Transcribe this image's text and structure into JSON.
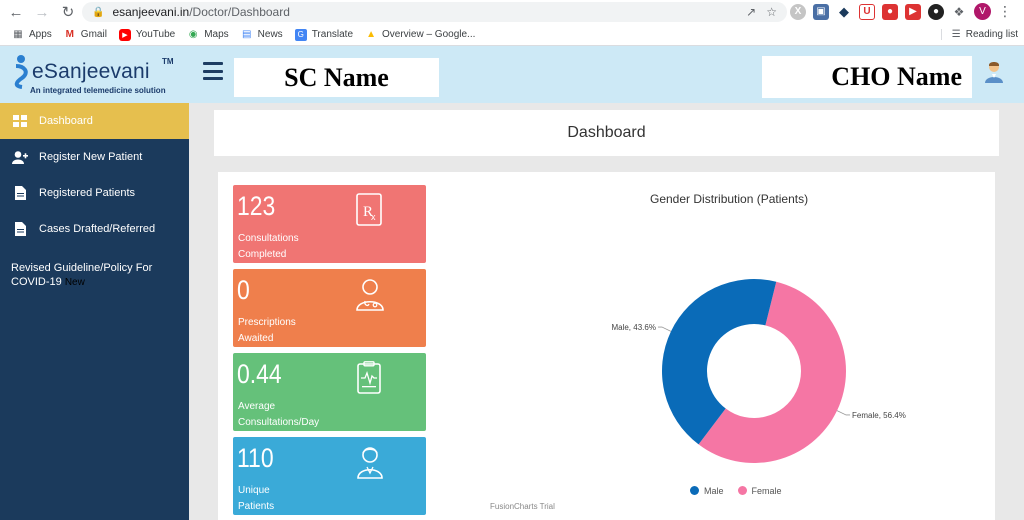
{
  "browser": {
    "url_host": "esanjeevani.in",
    "url_path": "/Doctor/Dashboard",
    "profile_initial": "V",
    "bookmarks": [
      {
        "label": "Apps",
        "icon": "apps-grid-icon"
      },
      {
        "label": "Gmail",
        "icon": "gmail-icon"
      },
      {
        "label": "YouTube",
        "icon": "youtube-icon"
      },
      {
        "label": "Maps",
        "icon": "maps-icon"
      },
      {
        "label": "News",
        "icon": "news-icon"
      },
      {
        "label": "Translate",
        "icon": "translate-icon"
      },
      {
        "label": "Overview – Google...",
        "icon": "google-ads-icon"
      }
    ],
    "reading_list": "Reading list"
  },
  "header": {
    "logo_text": "eSanjeevani",
    "logo_tm": "TM",
    "logo_tagline": "An integrated telemedicine solution",
    "sc_name": "SC Name",
    "cho_name": "CHO Name"
  },
  "sidebar": {
    "items": [
      {
        "label": "Dashboard",
        "icon": "dashboard-grid-icon",
        "active": true
      },
      {
        "label": "Register New Patient",
        "icon": "add-user-icon",
        "active": false
      },
      {
        "label": "Registered Patients",
        "icon": "document-icon",
        "active": false
      },
      {
        "label": "Cases Drafted/Referred",
        "icon": "document-icon",
        "active": false
      }
    ],
    "guideline_line1": "Revised Guideline/Policy For",
    "guideline_line2": "COVID-19",
    "new_tag": "New"
  },
  "main": {
    "title": "Dashboard",
    "stats": [
      {
        "value": "123",
        "label_line1": "Consultations",
        "label_line2": "Completed",
        "icon": "prescription-rx-icon",
        "color": "#f07573"
      },
      {
        "value": "0",
        "label_line1": "Prescriptions",
        "label_line2": "Awaited",
        "icon": "doctor-icon",
        "color": "#ef7f4c"
      },
      {
        "value": "0.44",
        "label_line1": "Average",
        "label_line2": "Consultations/Day",
        "icon": "clipboard-heartbeat-icon",
        "color": "#65c17a"
      },
      {
        "value": "110",
        "label_line1": "Unique",
        "label_line2": "Patients",
        "icon": "patient-icon",
        "color": "#3aaad8"
      }
    ],
    "fusioncharts_note": "FusionCharts Trial"
  },
  "chart_data": {
    "type": "pie",
    "variant": "doughnut",
    "title": "Gender Distribution (Patients)",
    "slices": [
      {
        "label": "Male",
        "value": 43.6,
        "display": "Male, 43.6%",
        "color": "#0a6bb8"
      },
      {
        "label": "Female",
        "value": 56.4,
        "display": "Female, 56.4%",
        "color": "#f576a4"
      }
    ],
    "legend_placement": "bottom"
  }
}
